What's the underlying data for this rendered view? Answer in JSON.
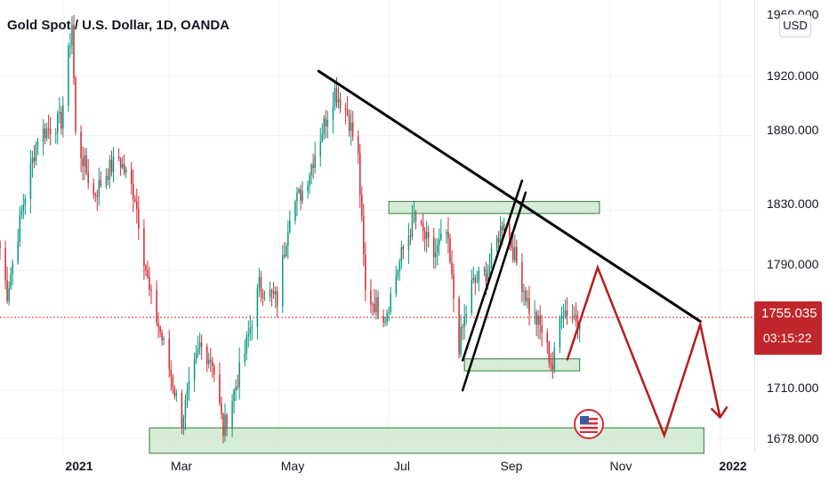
{
  "header": {
    "title": "Gold Spot / U.S. Dollar, 1D, OANDA",
    "currency_button": "USD"
  },
  "current_price": {
    "value": "1755.035",
    "countdown": "03:15:22",
    "color": "#c0262b"
  },
  "colors": {
    "up": "#089981",
    "down": "#d12d33",
    "zone_fill": "#c8e6c9",
    "zone_stroke": "#2e7d32",
    "trend": "#000000",
    "projection": "#b71c1c"
  },
  "chart_data": {
    "type": "candlestick",
    "symbol": "XAU/USD",
    "interval": "1D",
    "source": "OANDA",
    "y_ticks": [
      "1920.000",
      "1880.000",
      "1830.000",
      "1790.000",
      "1755.035",
      "1710.000",
      "1678.000"
    ],
    "y_tick_values": [
      1920,
      1880,
      1830,
      1790,
      1710,
      1678
    ],
    "top_partial_label": "1960.000",
    "x_ticks": [
      {
        "label": "2021",
        "date": "2021-01-01",
        "bold": true
      },
      {
        "label": "Mar",
        "date": "2021-03-01",
        "bold": false
      },
      {
        "label": "May",
        "date": "2021-05-01",
        "bold": false
      },
      {
        "label": "Jul",
        "date": "2021-07-01",
        "bold": false
      },
      {
        "label": "Sep",
        "date": "2021-09-01",
        "bold": false
      },
      {
        "label": "Nov",
        "date": "2021-11-01",
        "bold": false
      },
      {
        "label": "2022",
        "date": "2022-01-01",
        "bold": true
      }
    ],
    "x_range": [
      "2020-11-27",
      "2022-01-20"
    ],
    "y_range": [
      1668,
      1970
    ],
    "anchors": [
      [
        "2020-11-27",
        1805
      ],
      [
        "2020-12-01",
        1775
      ],
      [
        "2020-12-10",
        1835
      ],
      [
        "2020-12-18",
        1880
      ],
      [
        "2020-12-31",
        1890
      ],
      [
        "2021-01-06",
        1955
      ],
      [
        "2021-01-08",
        1880
      ],
      [
        "2021-01-18",
        1840
      ],
      [
        "2021-01-25",
        1855
      ],
      [
        "2021-02-01",
        1865
      ],
      [
        "2021-02-10",
        1840
      ],
      [
        "2021-02-18",
        1775
      ],
      [
        "2021-02-26",
        1740
      ],
      [
        "2021-03-08",
        1690
      ],
      [
        "2021-03-18",
        1740
      ],
      [
        "2021-03-25",
        1730
      ],
      [
        "2021-03-31",
        1683
      ],
      [
        "2021-04-12",
        1735
      ],
      [
        "2021-04-20",
        1780
      ],
      [
        "2021-04-30",
        1770
      ],
      [
        "2021-05-07",
        1830
      ],
      [
        "2021-05-15",
        1845
      ],
      [
        "2021-05-24",
        1880
      ],
      [
        "2021-06-01",
        1910
      ],
      [
        "2021-06-08",
        1895
      ],
      [
        "2021-06-14",
        1865
      ],
      [
        "2021-06-18",
        1775
      ],
      [
        "2021-06-29",
        1760
      ],
      [
        "2021-07-08",
        1800
      ],
      [
        "2021-07-15",
        1825
      ],
      [
        "2021-07-26",
        1800
      ],
      [
        "2021-08-02",
        1815
      ],
      [
        "2021-08-09",
        1740
      ],
      [
        "2021-08-16",
        1780
      ],
      [
        "2021-08-25",
        1790
      ],
      [
        "2021-09-03",
        1825
      ],
      [
        "2021-09-10",
        1795
      ],
      [
        "2021-09-17",
        1765
      ],
      [
        "2021-09-24",
        1750
      ],
      [
        "2021-09-30",
        1725
      ],
      [
        "2021-10-05",
        1765
      ],
      [
        "2021-10-12",
        1760
      ],
      [
        "2021-10-15",
        1755
      ]
    ],
    "annotations": {
      "resistance_zone": {
        "x": [
          "2021-07-01",
          "2021-10-26"
        ],
        "y": [
          1828,
          1836
        ]
      },
      "inner_support_zone": {
        "x": [
          "2021-08-12",
          "2021-10-15"
        ],
        "y": [
          1723,
          1731
        ]
      },
      "bottom_support_zone": {
        "x": [
          "2021-02-18",
          "2021-12-23"
        ],
        "y": [
          1668,
          1685
        ]
      },
      "descending_trendline": [
        [
          "2021-05-23",
          1923
        ],
        [
          "2021-12-21",
          1756
        ]
      ],
      "channel_left": [
        [
          "2021-08-11",
          1730
        ],
        [
          "2021-09-13",
          1850
        ]
      ],
      "channel_right": [
        [
          "2021-08-11",
          1710
        ],
        [
          "2021-09-15",
          1842
        ]
      ],
      "projection_path": [
        [
          "2021-10-08",
          1730
        ],
        [
          "2021-10-25",
          1792
        ],
        [
          "2021-12-01",
          1680
        ],
        [
          "2021-12-21",
          1754
        ],
        [
          "2022-01-01",
          1692
        ]
      ]
    }
  }
}
